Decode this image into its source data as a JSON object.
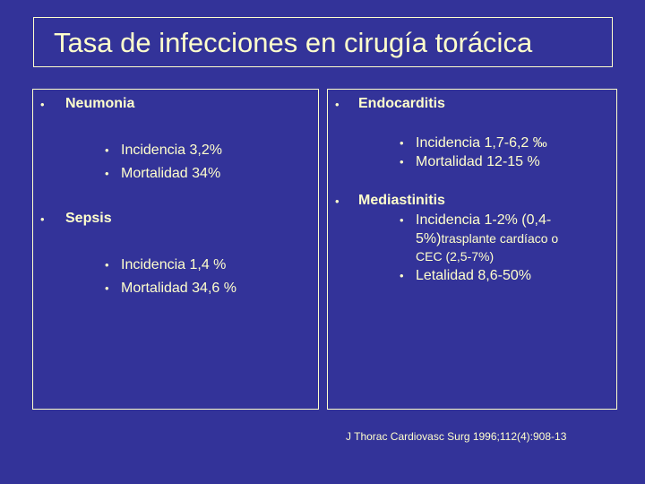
{
  "title": "Tasa de infecciones en cirugía torácica",
  "left": {
    "items": [
      {
        "heading": "Neumonia",
        "subs": [
          "Incidencia 3,2%",
          "Mortalidad 34%"
        ]
      },
      {
        "heading": "Sepsis",
        "subs": [
          "Incidencia 1,4 %",
          "Mortalidad 34,6 %"
        ]
      }
    ]
  },
  "right": {
    "items": [
      {
        "heading": "Endocarditis",
        "subs": [
          "Incidencia 1,7-6,2 ‰",
          "Mortalidad 12-15 %"
        ]
      },
      {
        "heading": "Mediastinitis",
        "sub1_line1": "Incidencia 1-2% (0,4-",
        "sub1_line2_bold": "5%)",
        "sub1_line2_normal": "trasplante cardíaco o",
        "sub1_line3": "CEC (2,5-7%)",
        "sub2": "Letalidad 8,6-50%"
      }
    ]
  },
  "bullet_main": "•",
  "bullet_sub": "•",
  "reference": "J Thorac Cardiovasc Surg 1996;112(4):908-13"
}
